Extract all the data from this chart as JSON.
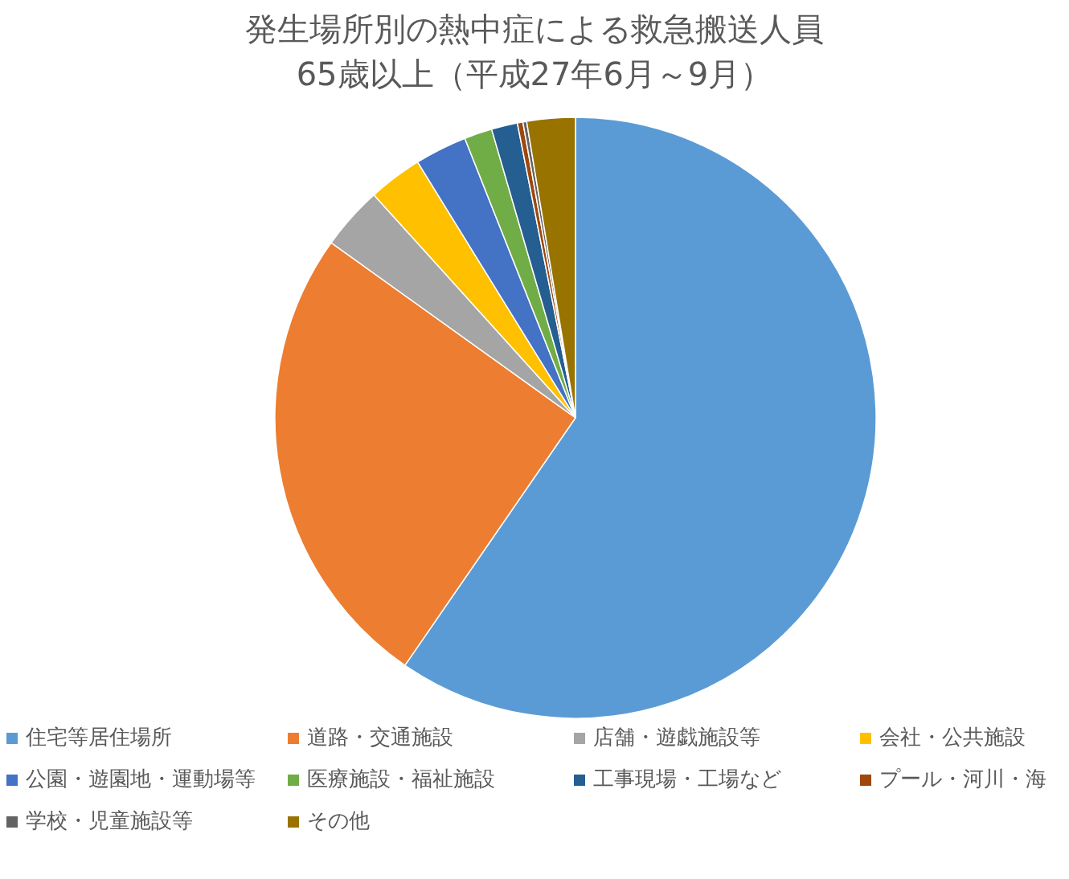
{
  "chart_data": {
    "type": "pie",
    "title": "発生場所別の熱中症による救急搬送人員",
    "subtitle": "65歳以上（平成27年6月～9月）",
    "categories": [
      "住宅等居住場所",
      "道路・交通施設",
      "店舗・遊戯施設等",
      "会社・公共施設",
      "公園・遊園地・運動場等",
      "医療施設・福祉施設",
      "工事現場・工場など",
      "プール・河川・海",
      "学校・児童施設等",
      "その他"
    ],
    "values": [
      59.6,
      25.3,
      3.4,
      2.9,
      2.8,
      1.5,
      1.4,
      0.3,
      0.2,
      2.6
    ],
    "colors": [
      "#5b9bd5",
      "#ed7d31",
      "#a5a5a5",
      "#ffc000",
      "#4472c4",
      "#70ad47",
      "#255e91",
      "#9e480e",
      "#636363",
      "#997300"
    ],
    "legend": "bottom"
  }
}
